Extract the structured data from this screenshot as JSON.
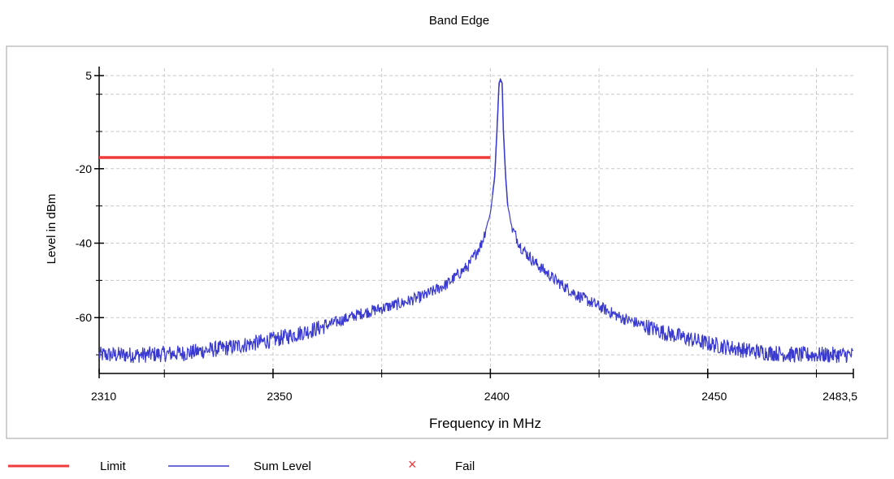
{
  "chart_data": {
    "type": "line",
    "title": "Band Edge",
    "xlabel": "Frequency in MHz",
    "ylabel": "Level in dBm",
    "xlim": [
      2310,
      2483.5
    ],
    "ylim": [
      -75,
      7
    ],
    "x_ticks": [
      {
        "value": 2310,
        "label": "2310"
      },
      {
        "value": 2350,
        "label": "2350"
      },
      {
        "value": 2400,
        "label": "2400"
      },
      {
        "value": 2450,
        "label": "2450"
      },
      {
        "value": 2483.5,
        "label": "2483,5"
      }
    ],
    "x_minor_ticks": [
      2325,
      2375,
      2425,
      2475
    ],
    "x_grid": [
      2325,
      2350,
      2375,
      2400,
      2425,
      2450,
      2475
    ],
    "y_ticks": [
      {
        "value": 5,
        "label": "5"
      },
      {
        "value": -20,
        "label": "-20"
      },
      {
        "value": -40,
        "label": "-40"
      },
      {
        "value": -60,
        "label": "-60"
      }
    ],
    "y_minor_ticks": [
      0,
      -10,
      -30,
      -50,
      -70
    ],
    "y_grid": [
      5,
      0,
      -10,
      -20,
      -30,
      -40,
      -50,
      -60,
      -70
    ],
    "grid": true,
    "legend_position": "bottom-left",
    "series": [
      {
        "name": "Limit",
        "color": "#ee3b3b",
        "style": "thick-line",
        "x": [
          2310,
          2400
        ],
        "y": [
          -17,
          -17
        ]
      },
      {
        "name": "Sum Level",
        "color": "#3a3ad0",
        "style": "line",
        "x": [
          2310,
          2320,
          2330,
          2340,
          2345,
          2350,
          2360,
          2370,
          2380,
          2385,
          2390,
          2395,
          2398,
          2400,
          2401,
          2401.5,
          2402,
          2402.3,
          2402.7,
          2403,
          2403.5,
          2404,
          2405,
          2407,
          2410,
          2415,
          2420,
          2425,
          2430,
          2440,
          2450,
          2460,
          2470,
          2483.5
        ],
        "y": [
          -70,
          -70,
          -69.5,
          -68,
          -67,
          -66,
          -63,
          -59,
          -56,
          -54,
          -51,
          -46,
          -40,
          -32,
          -22,
          -10,
          3,
          4,
          3,
          -10,
          -22,
          -30,
          -36,
          -41,
          -45,
          -50,
          -54,
          -57,
          -60,
          -64,
          -67,
          -69,
          -70,
          -70
        ]
      },
      {
        "name": "Fail",
        "color": "#e83c3c",
        "style": "marker-x",
        "x": [],
        "y": []
      }
    ]
  }
}
